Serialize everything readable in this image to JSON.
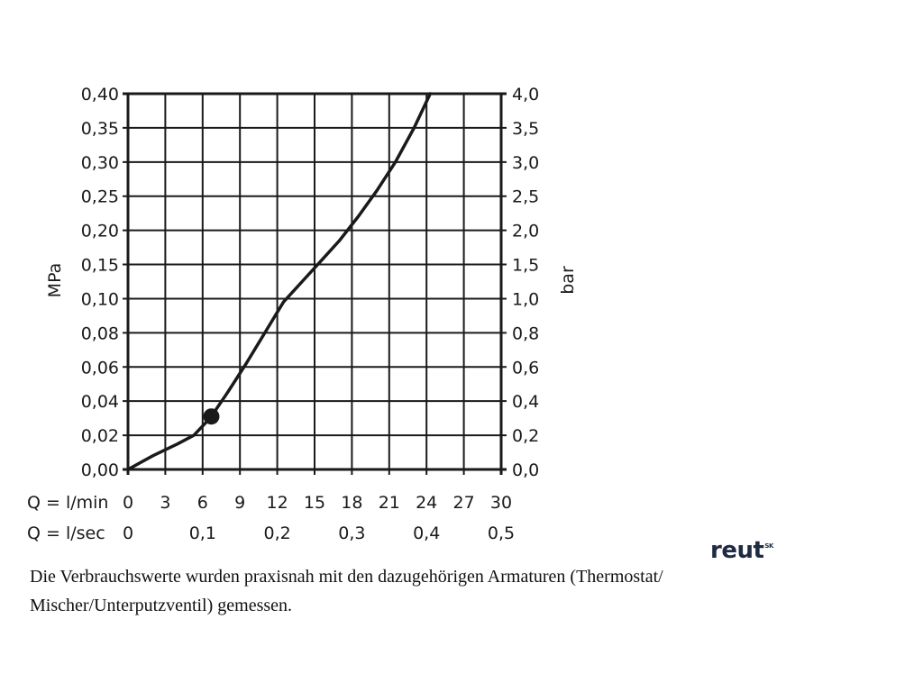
{
  "chart_data": {
    "type": "line",
    "left_axis": {
      "label": "MPa",
      "ticks": [
        "0,00",
        "0,02",
        "0,04",
        "0,06",
        "0,08",
        "0,10",
        "0,15",
        "0,20",
        "0,25",
        "0,30",
        "0,35",
        "0,40"
      ]
    },
    "right_axis": {
      "label": "bar",
      "ticks": [
        "0,0",
        "0,2",
        "0,4",
        "0,6",
        "0,8",
        "1,0",
        "1,5",
        "2,0",
        "2,5",
        "3,0",
        "3,5",
        "4,0"
      ]
    },
    "x_axis_primary": {
      "label": "Q = l/min",
      "ticks": [
        "0",
        "3",
        "6",
        "9",
        "12",
        "15",
        "18",
        "21",
        "24",
        "27",
        "30"
      ],
      "values": [
        0,
        3,
        6,
        9,
        12,
        15,
        18,
        21,
        24,
        27,
        30
      ]
    },
    "x_axis_secondary": {
      "label": "Q = l/sec",
      "ticks": [
        "0",
        "0,1",
        "0,2",
        "0,3",
        "0,4",
        "0,5"
      ],
      "values": [
        0,
        6,
        12,
        18,
        24,
        30
      ]
    },
    "xlim": [
      0,
      30
    ],
    "grid": true,
    "y_scale_note": "non-uniform: 0–0.10 MPa in 0.02 steps, 0.10–0.40 MPa in 0.05 steps; all ticks equally spaced",
    "series": [
      {
        "x": [
          0,
          2,
          4,
          5.3,
          6.6,
          8,
          9.5,
          11,
          12.5,
          14,
          15.5,
          17,
          18.5,
          20,
          21.5,
          23,
          24.3
        ],
        "y": [
          0.0,
          0.008,
          0.015,
          0.02,
          0.03,
          0.045,
          0.062,
          0.08,
          0.098,
          0.125,
          0.155,
          0.185,
          0.22,
          0.258,
          0.3,
          0.35,
          0.4
        ]
      }
    ],
    "marker": {
      "x": 6.7,
      "y": 0.031
    }
  },
  "logo": {
    "text": "reut",
    "superscript": "SK"
  },
  "note": {
    "line1": "Die Verbrauchswerte wurden praxisnah mit den dazugehörigen Armaturen (Thermostat/",
    "line2": "Mischer/Unterputzventil) gemessen."
  }
}
